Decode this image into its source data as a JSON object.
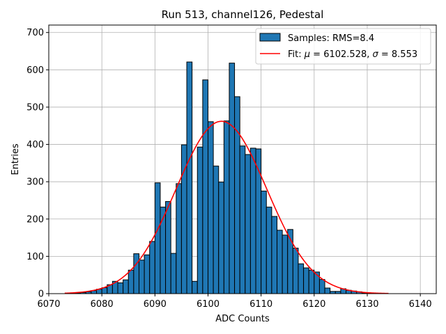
{
  "chart_data": {
    "type": "bar",
    "title": "Run 513, channel126, Pedestal",
    "xlabel": "ADC Counts",
    "ylabel": "Entries",
    "xlim": [
      6070,
      6143
    ],
    "ylim": [
      0,
      720
    ],
    "xticks": [
      6070,
      6080,
      6090,
      6100,
      6110,
      6120,
      6130,
      6140
    ],
    "yticks": [
      0,
      100,
      200,
      300,
      400,
      500,
      600,
      700
    ],
    "grid": true,
    "legend_position": "top-right",
    "bar_color": "#1f77b4",
    "fit_color": "#ff0000",
    "series": [
      {
        "name": "Samples: RMS=8.4",
        "type": "histogram",
        "bin_width": 1,
        "x": [
          6073,
          6074,
          6075,
          6076,
          6077,
          6078,
          6079,
          6080,
          6081,
          6082,
          6083,
          6084,
          6085,
          6086,
          6087,
          6088,
          6089,
          6090,
          6091,
          6092,
          6093,
          6094,
          6095,
          6096,
          6097,
          6098,
          6099,
          6100,
          6101,
          6102,
          6103,
          6104,
          6105,
          6106,
          6107,
          6108,
          6109,
          6110,
          6111,
          6112,
          6113,
          6114,
          6115,
          6116,
          6117,
          6118,
          6119,
          6120,
          6121,
          6122,
          6123,
          6124,
          6125,
          6126,
          6127,
          6128,
          6129,
          6130,
          6131,
          6132,
          6133,
          6134
        ],
        "values": [
          0,
          1,
          2,
          3,
          5,
          8,
          12,
          16,
          24,
          33,
          29,
          37,
          63,
          107,
          90,
          104,
          140,
          297,
          232,
          247,
          108,
          295,
          399,
          621,
          33,
          393,
          573,
          461,
          342,
          299,
          463,
          618,
          528,
          396,
          373,
          390,
          388,
          275,
          232,
          207,
          170,
          157,
          172,
          122,
          80,
          69,
          63,
          58,
          38,
          15,
          6,
          6,
          13,
          9,
          7,
          5,
          2,
          1,
          1,
          0,
          0,
          0
        ]
      },
      {
        "name": "Fit: μ = 6102.528, σ = 8.553",
        "type": "gaussian",
        "mu": 6102.528,
        "sigma": 8.553,
        "amplitude": 462,
        "x_range": [
          6073,
          6134
        ]
      }
    ]
  },
  "legend": {
    "hist_label": "Samples: RMS=8.4",
    "fit_label_prefix": "Fit: ",
    "fit_mu_symbol": "μ",
    "fit_mu_value": " = 6102.528, ",
    "fit_sigma_symbol": "σ",
    "fit_sigma_value": " = 8.553"
  }
}
